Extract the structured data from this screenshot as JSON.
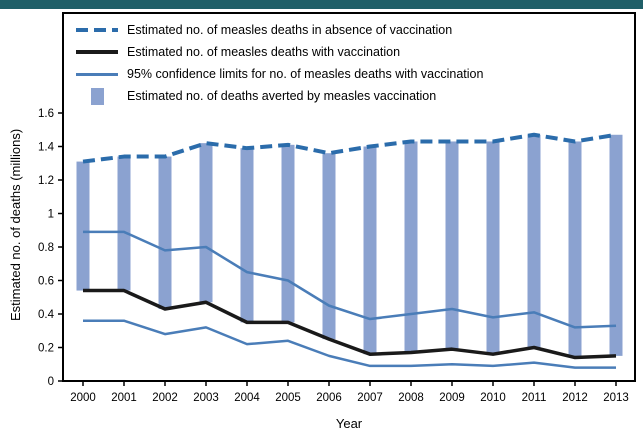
{
  "chart_data": {
    "type": "bar",
    "title": "",
    "xlabel": "Year",
    "ylabel": "Estimated no. of deaths (millions)",
    "ylim": [
      0,
      1.6
    ],
    "grid": false,
    "legend_position": "top-left-inside",
    "years": [
      2000,
      2001,
      2002,
      2003,
      2004,
      2005,
      2006,
      2007,
      2008,
      2009,
      2010,
      2011,
      2012,
      2013
    ],
    "y_ticks": [
      "0",
      "0.2",
      "0.4",
      "0.6",
      "0.8",
      "1",
      "1.2",
      "1.4",
      "1.6"
    ],
    "y_tick_values": [
      0,
      0.2,
      0.4,
      0.6,
      0.8,
      1,
      1.2,
      1.4,
      1.6
    ],
    "without_vaccination": [
      1.31,
      1.34,
      1.34,
      1.42,
      1.39,
      1.41,
      1.36,
      1.4,
      1.43,
      1.43,
      1.43,
      1.47,
      1.43,
      1.47
    ],
    "with_vaccination": [
      0.54,
      0.54,
      0.43,
      0.47,
      0.35,
      0.35,
      0.25,
      0.16,
      0.17,
      0.19,
      0.16,
      0.2,
      0.14,
      0.15
    ],
    "ci_upper": [
      0.89,
      0.89,
      0.78,
      0.8,
      0.65,
      0.6,
      0.45,
      0.37,
      0.4,
      0.43,
      0.38,
      0.41,
      0.32,
      0.33
    ],
    "ci_lower": [
      0.36,
      0.36,
      0.28,
      0.32,
      0.22,
      0.24,
      0.15,
      0.09,
      0.09,
      0.1,
      0.09,
      0.11,
      0.08,
      0.08
    ],
    "bars": {
      "name": "Estimated no. of deaths averted by measles vaccination",
      "bottom_series": "with_vaccination",
      "top_series": "without_vaccination"
    },
    "legend": [
      {
        "label": "Estimated no. of measles deaths in absence of vaccination",
        "marker": "thick-dashed-blue-line"
      },
      {
        "label": "Estimated no. of measles deaths with vaccination",
        "marker": "thick-solid-black-line"
      },
      {
        "label": "95% confidence limits for no. of measles deaths with vaccination",
        "marker": "solid-blue-line"
      },
      {
        "label": "Estimated no. of deaths averted by measles vaccination",
        "marker": "blue-bar-swatch"
      }
    ],
    "colors": {
      "topbar": "#1f5f68",
      "bar": "#8ba2d0",
      "dashed": "#2b6cab",
      "ci": "#4a7db8",
      "line": "#1a1a1a",
      "border": "#000000"
    }
  }
}
